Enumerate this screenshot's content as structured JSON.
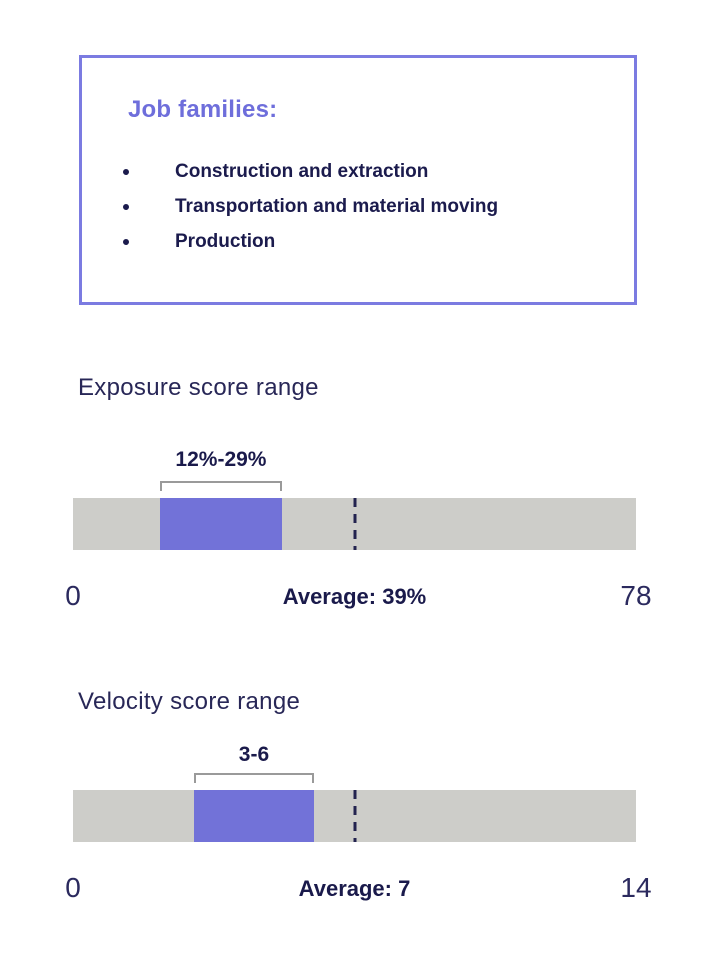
{
  "panel": {
    "title": "Job families:",
    "items": [
      "Construction and extraction",
      "Transportation and material moving",
      "Production"
    ]
  },
  "chart_data": [
    {
      "type": "bar",
      "variant": "horizontal-range",
      "title": "Exposure score range",
      "range": {
        "low": 12,
        "high": 29,
        "label": "12%-29%"
      },
      "average": {
        "value": 39,
        "label": "Average: 39%"
      },
      "axis": {
        "min": 0,
        "max": 78,
        "min_label": "0",
        "max_label": "78"
      },
      "marker_style": "dashed-vertical-line"
    },
    {
      "type": "bar",
      "variant": "horizontal-range",
      "title": "Velocity score range",
      "range": {
        "low": 3,
        "high": 6,
        "label": "3-6"
      },
      "average": {
        "value": 7,
        "label": "Average: 7"
      },
      "axis": {
        "min": 0,
        "max": 14,
        "min_label": "0",
        "max_label": "14"
      },
      "marker_style": "dashed-vertical-line"
    }
  ],
  "colors": {
    "panel_border": "#7B7BE1",
    "heading_purple": "#6E6EDB",
    "segment_purple": "#7272D8",
    "track_gray": "#CDCDC9",
    "bracket_gray": "#9A9A9A",
    "navy_text": "#22224F"
  }
}
